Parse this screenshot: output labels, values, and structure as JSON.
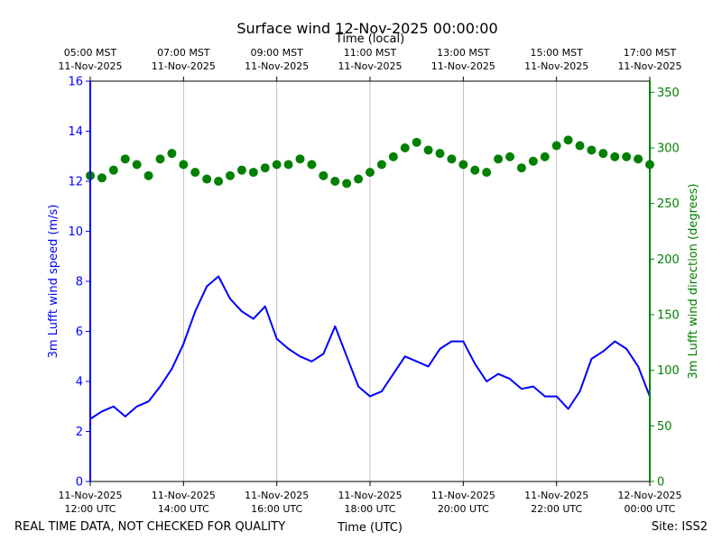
{
  "chart_data": {
    "type": "line+scatter",
    "title": "Surface wind 12-Nov-2025 00:00:00",
    "xlabel_bottom": "Time (UTC)",
    "xlabel_top": "Time (local)",
    "ylabel_left": "3m Lufft wind speed (m/s)",
    "ylabel_right": "3m Lufft wind direction (degrees)",
    "footer_left": "REAL TIME DATA, NOT CHECKED FOR QUALITY",
    "footer_right": "Site: ISS2",
    "x_range_hours_utc": [
      12,
      24
    ],
    "ylim_left": [
      0,
      16
    ],
    "ylim_right": [
      0,
      360
    ],
    "yticks_left": [
      "0",
      "2",
      "4",
      "6",
      "8",
      "10",
      "12",
      "14",
      "16"
    ],
    "yticks_right": [
      "0",
      "50",
      "100",
      "150",
      "200",
      "250",
      "300",
      "350"
    ],
    "bottom_ticks": [
      {
        "hour": 12,
        "date": "11-Nov-2025",
        "time": "12:00 UTC"
      },
      {
        "hour": 14,
        "date": "11-Nov-2025",
        "time": "14:00 UTC"
      },
      {
        "hour": 16,
        "date": "11-Nov-2025",
        "time": "16:00 UTC"
      },
      {
        "hour": 18,
        "date": "11-Nov-2025",
        "time": "18:00 UTC"
      },
      {
        "hour": 20,
        "date": "11-Nov-2025",
        "time": "20:00 UTC"
      },
      {
        "hour": 22,
        "date": "11-Nov-2025",
        "time": "22:00 UTC"
      },
      {
        "hour": 24,
        "date": "12-Nov-2025",
        "time": "00:00 UTC"
      }
    ],
    "top_ticks": [
      {
        "hour": 12,
        "time": "05:00 MST",
        "date": "11-Nov-2025"
      },
      {
        "hour": 14,
        "time": "07:00 MST",
        "date": "11-Nov-2025"
      },
      {
        "hour": 16,
        "time": "09:00 MST",
        "date": "11-Nov-2025"
      },
      {
        "hour": 18,
        "time": "11:00 MST",
        "date": "11-Nov-2025"
      },
      {
        "hour": 20,
        "time": "13:00 MST",
        "date": "11-Nov-2025"
      },
      {
        "hour": 22,
        "time": "15:00 MST",
        "date": "11-Nov-2025"
      },
      {
        "hour": 24,
        "time": "17:00 MST",
        "date": "11-Nov-2025"
      }
    ],
    "vertical_grid": true,
    "series": [
      {
        "name": "3m Lufft wind speed",
        "axis": "left",
        "style": "line",
        "color": "#0000ff",
        "x_hours": [
          12.0,
          12.25,
          12.5,
          12.75,
          13.0,
          13.25,
          13.5,
          13.75,
          14.0,
          14.25,
          14.5,
          14.75,
          15.0,
          15.25,
          15.5,
          15.75,
          16.0,
          16.25,
          16.5,
          16.75,
          17.0,
          17.25,
          17.5,
          17.75,
          18.0,
          18.25,
          18.5,
          18.75,
          19.0,
          19.25,
          19.5,
          19.75,
          20.0,
          20.25,
          20.5,
          20.75,
          21.0,
          21.25,
          21.5,
          21.75,
          22.0,
          22.25,
          22.5,
          22.75,
          23.0,
          23.25,
          23.5,
          23.75,
          24.0
        ],
        "values": [
          2.5,
          2.8,
          3.0,
          2.6,
          3.0,
          3.2,
          3.8,
          4.5,
          5.5,
          6.8,
          7.8,
          8.2,
          7.3,
          6.8,
          6.5,
          7.0,
          5.7,
          5.3,
          5.0,
          4.8,
          5.1,
          6.2,
          5.0,
          3.8,
          3.4,
          3.6,
          4.3,
          5.0,
          4.8,
          4.6,
          5.3,
          5.6,
          5.6,
          4.7,
          4.0,
          4.3,
          4.1,
          3.7,
          3.8,
          3.4,
          3.4,
          2.9,
          3.6,
          4.9,
          5.2,
          5.6,
          5.3,
          4.6,
          3.4
        ]
      },
      {
        "name": "3m Lufft wind direction",
        "axis": "right",
        "style": "scatter",
        "color": "#008000",
        "x_hours": [
          12.0,
          12.25,
          12.5,
          12.75,
          13.0,
          13.25,
          13.5,
          13.75,
          14.0,
          14.25,
          14.5,
          14.75,
          15.0,
          15.25,
          15.5,
          15.75,
          16.0,
          16.25,
          16.5,
          16.75,
          17.0,
          17.25,
          17.5,
          17.75,
          18.0,
          18.25,
          18.5,
          18.75,
          19.0,
          19.25,
          19.5,
          19.75,
          20.0,
          20.25,
          20.5,
          20.75,
          21.0,
          21.25,
          21.5,
          21.75,
          22.0,
          22.25,
          22.5,
          22.75,
          23.0,
          23.25,
          23.5,
          23.75,
          24.0
        ],
        "values": [
          275,
          273,
          280,
          290,
          285,
          275,
          290,
          295,
          285,
          278,
          272,
          270,
          275,
          280,
          278,
          282,
          285,
          285,
          290,
          285,
          275,
          270,
          268,
          272,
          278,
          285,
          292,
          300,
          305,
          298,
          295,
          290,
          285,
          280,
          278,
          290,
          292,
          282,
          288,
          292,
          302,
          307,
          302,
          298,
          295,
          292,
          292,
          290,
          285
        ]
      }
    ]
  }
}
